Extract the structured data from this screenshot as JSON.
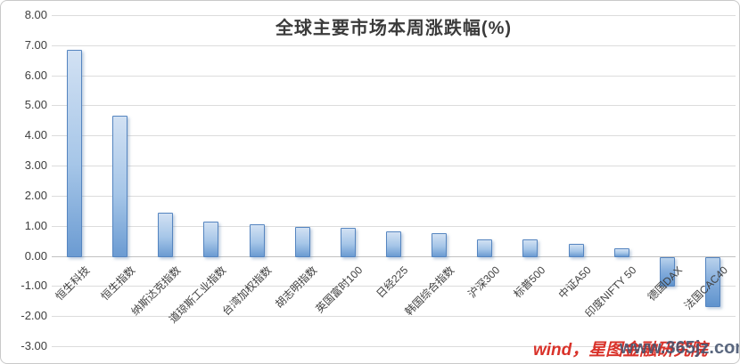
{
  "chart_data": {
    "type": "bar",
    "title": "全球主要市场本周涨跌幅(%)",
    "categories": [
      "恒生科技",
      "恒生指数",
      "纳斯达克指数",
      "道琼斯工业指数",
      "台湾加权指数",
      "胡志明指数",
      "英国富时100",
      "日经225",
      "韩国综合指数",
      "沪深300",
      "标普500",
      "中证A50",
      "印度NIFTY 50",
      "德国DAX",
      "法国CAC40"
    ],
    "values": [
      6.85,
      4.65,
      1.45,
      1.15,
      1.05,
      0.95,
      0.92,
      0.8,
      0.77,
      0.55,
      0.54,
      0.4,
      0.25,
      -0.95,
      -1.65
    ],
    "xlabel": "",
    "ylabel": "",
    "ylim": [
      -3,
      8
    ],
    "y_tick_step": 1,
    "y_tick_labels": [
      "8.00",
      "7.00",
      "6.00",
      "5.00",
      "4.00",
      "3.00",
      "2.00",
      "1.00",
      "0.00",
      "-1.00",
      "-2.00",
      "-3.00"
    ],
    "grid": true,
    "legend": "none",
    "bar_fill_light": "#d2e1f3",
    "bar_fill_dark": "#6b9bd2",
    "bar_border_color": "#5585c0",
    "gridline_color": "#dcdcdc",
    "text_color": "#404040"
  },
  "watermark": {
    "source_text": "wind，星图金融研究院",
    "source_color": "#d9322a",
    "url_text": "www.365jz.com",
    "url_color": "#44536e"
  }
}
